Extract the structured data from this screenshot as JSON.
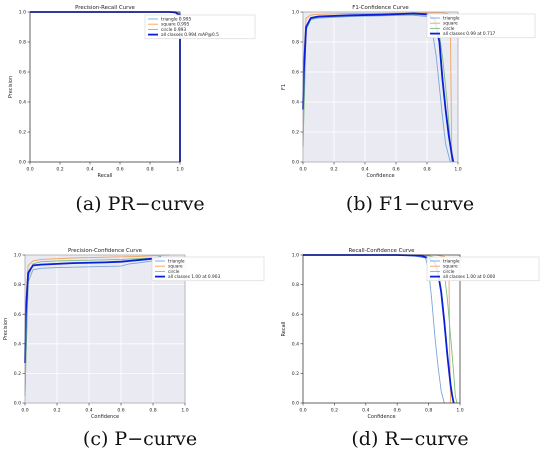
{
  "colors": {
    "triangle": "#7aa6d6",
    "square": "#f0a35e",
    "circle": "#7cbf7c",
    "all_classes": "#0a1fd8",
    "plot_bg": "#eaeaf2",
    "grid": "#ffffff"
  },
  "captions": {
    "a": "(a) PR−curve",
    "b": "(b) F1−curve",
    "c": "(c) P−curve",
    "d": "(d) R−curve"
  },
  "chart_data": [
    {
      "id": "pr",
      "type": "line",
      "title": "Precision-Recall Curve",
      "xlabel": "Recall",
      "ylabel": "Precision",
      "xlim": [
        0,
        1
      ],
      "ylim": [
        0,
        1
      ],
      "xticks": [
        "0.0",
        "0.2",
        "0.4",
        "0.6",
        "0.8",
        "1.0"
      ],
      "yticks": [
        "0.0",
        "0.2",
        "0.4",
        "0.6",
        "0.8",
        "1.0"
      ],
      "grid": false,
      "background": "white",
      "legend_position": "top-right",
      "series": [
        {
          "name": "triangle 0.995",
          "color_key": "triangle",
          "width": 0.9,
          "x": [
            0,
            0.93,
            0.97,
            0.98,
            0.99,
            1.0,
            1.0
          ],
          "y": [
            1.0,
            1.0,
            1.0,
            0.99,
            0.985,
            0.98,
            0.0
          ]
        },
        {
          "name": "square 0.995",
          "color_key": "square",
          "width": 0.9,
          "x": [
            0,
            0.94,
            0.975,
            0.985,
            0.995,
            1.0,
            1.0
          ],
          "y": [
            1.0,
            1.0,
            1.0,
            0.995,
            0.99,
            0.985,
            0.0
          ]
        },
        {
          "name": "circle 0.993",
          "color_key": "circle",
          "width": 0.9,
          "x": [
            0,
            0.92,
            0.96,
            0.975,
            0.99,
            1.0,
            1.0
          ],
          "y": [
            1.0,
            1.0,
            0.995,
            0.99,
            0.98,
            0.975,
            0.0
          ]
        },
        {
          "name": "all classes 0.994 mAP@0.5",
          "color_key": "all_classes",
          "width": 1.8,
          "x": [
            0,
            0.93,
            0.97,
            0.98,
            0.99,
            1.0,
            1.0
          ],
          "y": [
            1.0,
            1.0,
            0.998,
            0.99,
            0.985,
            0.98,
            0.0
          ]
        }
      ]
    },
    {
      "id": "f1",
      "type": "line",
      "title": "F1-Confidence Curve",
      "xlabel": "Confidence",
      "ylabel": "F1",
      "xlim": [
        0,
        1
      ],
      "ylim": [
        0,
        1
      ],
      "xticks": [
        "0.0",
        "0.2",
        "0.4",
        "0.6",
        "0.8",
        "1.0"
      ],
      "yticks": [
        "0.0",
        "0.2",
        "0.4",
        "0.6",
        "0.8",
        "1.0"
      ],
      "grid": true,
      "background": "gray",
      "legend_position": "top-right",
      "series": [
        {
          "name": "triangle",
          "color_key": "triangle",
          "width": 0.9,
          "x": [
            0,
            0.005,
            0.02,
            0.05,
            0.1,
            0.3,
            0.5,
            0.7,
            0.8,
            0.83,
            0.86,
            0.88,
            0.9,
            0.92,
            0.95
          ],
          "y": [
            0.1,
            0.35,
            0.88,
            0.95,
            0.96,
            0.97,
            0.975,
            0.98,
            0.97,
            0.9,
            0.7,
            0.5,
            0.3,
            0.12,
            0.0
          ]
        },
        {
          "name": "square",
          "color_key": "square",
          "width": 0.9,
          "x": [
            0,
            0.005,
            0.02,
            0.05,
            0.1,
            0.3,
            0.5,
            0.7,
            0.85,
            0.9,
            0.93,
            0.95,
            0.96
          ],
          "y": [
            0.25,
            0.7,
            0.96,
            0.98,
            0.985,
            0.99,
            0.99,
            0.992,
            0.995,
            0.995,
            0.99,
            0.98,
            0.0
          ]
        },
        {
          "name": "circle",
          "color_key": "circle",
          "width": 0.9,
          "x": [
            0,
            0.005,
            0.02,
            0.05,
            0.1,
            0.3,
            0.5,
            0.7,
            0.8,
            0.85,
            0.88,
            0.9,
            0.93,
            0.96
          ],
          "y": [
            0.1,
            0.3,
            0.88,
            0.955,
            0.965,
            0.975,
            0.98,
            0.985,
            0.98,
            0.95,
            0.85,
            0.7,
            0.4,
            0.0
          ]
        },
        {
          "name": "all classes 0.99 at 0.717",
          "color_key": "all_classes",
          "width": 1.8,
          "x": [
            0,
            0.005,
            0.02,
            0.05,
            0.1,
            0.3,
            0.5,
            0.717,
            0.8,
            0.85,
            0.88,
            0.9,
            0.92,
            0.94,
            0.96,
            0.97
          ],
          "y": [
            0.35,
            0.6,
            0.9,
            0.96,
            0.97,
            0.978,
            0.982,
            0.99,
            0.985,
            0.95,
            0.8,
            0.55,
            0.35,
            0.18,
            0.05,
            0.0
          ]
        }
      ]
    },
    {
      "id": "p",
      "type": "line",
      "title": "Precision-Confidence Curve",
      "xlabel": "Confidence",
      "ylabel": "Precision",
      "xlim": [
        0,
        1
      ],
      "ylim": [
        0,
        1
      ],
      "xticks": [
        "0.0",
        "0.2",
        "0.4",
        "0.6",
        "0.8",
        "1.0"
      ],
      "yticks": [
        "0.0",
        "0.2",
        "0.4",
        "0.6",
        "0.8",
        "1.0"
      ],
      "grid": true,
      "background": "gray",
      "legend_position": "top-right",
      "series": [
        {
          "name": "triangle",
          "color_key": "triangle",
          "width": 0.9,
          "x": [
            0,
            0.005,
            0.02,
            0.05,
            0.1,
            0.2,
            0.4,
            0.6,
            0.65,
            0.7,
            0.8,
            0.85
          ],
          "y": [
            0.05,
            0.3,
            0.82,
            0.9,
            0.91,
            0.915,
            0.92,
            0.925,
            0.94,
            0.945,
            0.96,
            0.97
          ]
        },
        {
          "name": "square",
          "color_key": "square",
          "width": 0.9,
          "x": [
            0,
            0.005,
            0.02,
            0.05,
            0.1,
            0.2,
            0.3,
            0.5,
            0.7,
            0.8,
            0.9
          ],
          "y": [
            0.2,
            0.7,
            0.93,
            0.96,
            0.97,
            0.975,
            0.98,
            0.985,
            0.99,
            0.995,
            1.0
          ]
        },
        {
          "name": "circle",
          "color_key": "circle",
          "width": 0.9,
          "x": [
            0,
            0.005,
            0.02,
            0.05,
            0.1,
            0.2,
            0.4,
            0.6,
            0.7,
            0.8,
            0.85
          ],
          "y": [
            0.05,
            0.25,
            0.85,
            0.94,
            0.955,
            0.96,
            0.965,
            0.97,
            0.975,
            0.98,
            0.99
          ]
        },
        {
          "name": "all classes 1.00 at 0.903",
          "color_key": "all_classes",
          "width": 1.8,
          "x": [
            0,
            0.005,
            0.02,
            0.05,
            0.1,
            0.2,
            0.3,
            0.5,
            0.6,
            0.7,
            0.8,
            0.85
          ],
          "y": [
            0.27,
            0.6,
            0.88,
            0.93,
            0.935,
            0.94,
            0.945,
            0.95,
            0.955,
            0.965,
            0.975,
            0.985
          ]
        }
      ]
    },
    {
      "id": "r",
      "type": "line",
      "title": "Recall-Confidence Curve",
      "xlabel": "Confidence",
      "ylabel": "Recall",
      "xlim": [
        0,
        1
      ],
      "ylim": [
        0,
        1
      ],
      "xticks": [
        "0.0",
        "0.2",
        "0.4",
        "0.6",
        "0.8",
        "1.0"
      ],
      "yticks": [
        "0.0",
        "0.2",
        "0.4",
        "0.6",
        "0.8",
        "1.0"
      ],
      "grid": false,
      "background": "white",
      "legend_position": "top-right",
      "series": [
        {
          "name": "triangle",
          "color_key": "triangle",
          "width": 0.9,
          "x": [
            0,
            0.5,
            0.7,
            0.78,
            0.8,
            0.82,
            0.84,
            0.86,
            0.88,
            0.9
          ],
          "y": [
            1.0,
            1.0,
            0.995,
            0.98,
            0.9,
            0.7,
            0.45,
            0.25,
            0.08,
            0.0
          ]
        },
        {
          "name": "square",
          "color_key": "square",
          "width": 0.9,
          "x": [
            0,
            0.6,
            0.85,
            0.9,
            0.92,
            0.93,
            0.935,
            0.94
          ],
          "y": [
            1.0,
            1.0,
            1.0,
            0.99,
            0.95,
            0.85,
            0.3,
            0.0
          ]
        },
        {
          "name": "circle",
          "color_key": "circle",
          "width": 0.9,
          "x": [
            0,
            0.6,
            0.8,
            0.85,
            0.88,
            0.9,
            0.92,
            0.94,
            0.96,
            0.97,
            0.98
          ],
          "y": [
            1.0,
            1.0,
            0.995,
            0.98,
            0.95,
            0.88,
            0.7,
            0.45,
            0.2,
            0.05,
            0.0
          ]
        },
        {
          "name": "all classes 1.00 at 0.000",
          "color_key": "all_classes",
          "width": 1.8,
          "x": [
            0,
            0.6,
            0.75,
            0.8,
            0.84,
            0.86,
            0.88,
            0.9,
            0.92,
            0.94,
            0.95,
            0.96
          ],
          "y": [
            1.0,
            1.0,
            0.995,
            0.98,
            0.95,
            0.88,
            0.75,
            0.55,
            0.32,
            0.12,
            0.05,
            0.0
          ]
        }
      ]
    }
  ]
}
